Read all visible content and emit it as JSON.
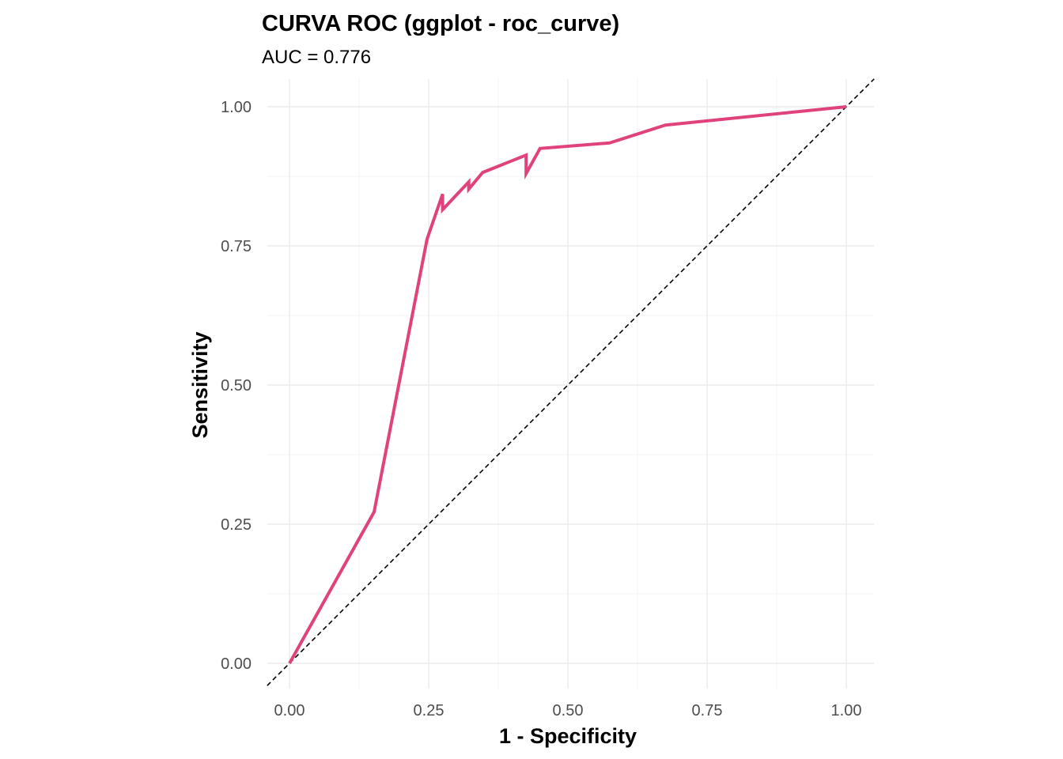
{
  "chart_data": {
    "type": "line",
    "title": "CURVA ROC (ggplot - roc_curve)",
    "subtitle": "AUC = 0.776",
    "xlabel": "1 - Specificity",
    "ylabel": "Sensitivity",
    "xlim": [
      -0.04,
      1.05
    ],
    "ylim": [
      -0.045,
      1.05
    ],
    "x_ticks": [
      0.0,
      0.25,
      0.5,
      0.75,
      1.0
    ],
    "y_ticks": [
      0.0,
      0.25,
      0.5,
      0.75,
      1.0
    ],
    "x_tick_labels": [
      "0.00",
      "0.25",
      "0.50",
      "0.75",
      "1.00"
    ],
    "y_tick_labels": [
      "0.00",
      "0.25",
      "0.50",
      "0.75",
      "1.00"
    ],
    "grid": true,
    "legend": "none",
    "colors": {
      "roc": "#e0427b",
      "reference": "#000000"
    },
    "series": [
      {
        "x": [
          0.0,
          0.152,
          0.247,
          0.275,
          0.275,
          0.322,
          0.322,
          0.347,
          0.425,
          0.425,
          0.45,
          0.575,
          0.675,
          1.0
        ],
        "y": [
          0.0,
          0.272,
          0.762,
          0.843,
          0.815,
          0.865,
          0.852,
          0.882,
          0.913,
          0.88,
          0.925,
          0.935,
          0.967,
          1.0
        ]
      }
    ],
    "reference_line": {
      "x": [
        -0.04,
        1.05
      ],
      "y": [
        -0.04,
        1.05
      ],
      "style": "dashed"
    }
  }
}
